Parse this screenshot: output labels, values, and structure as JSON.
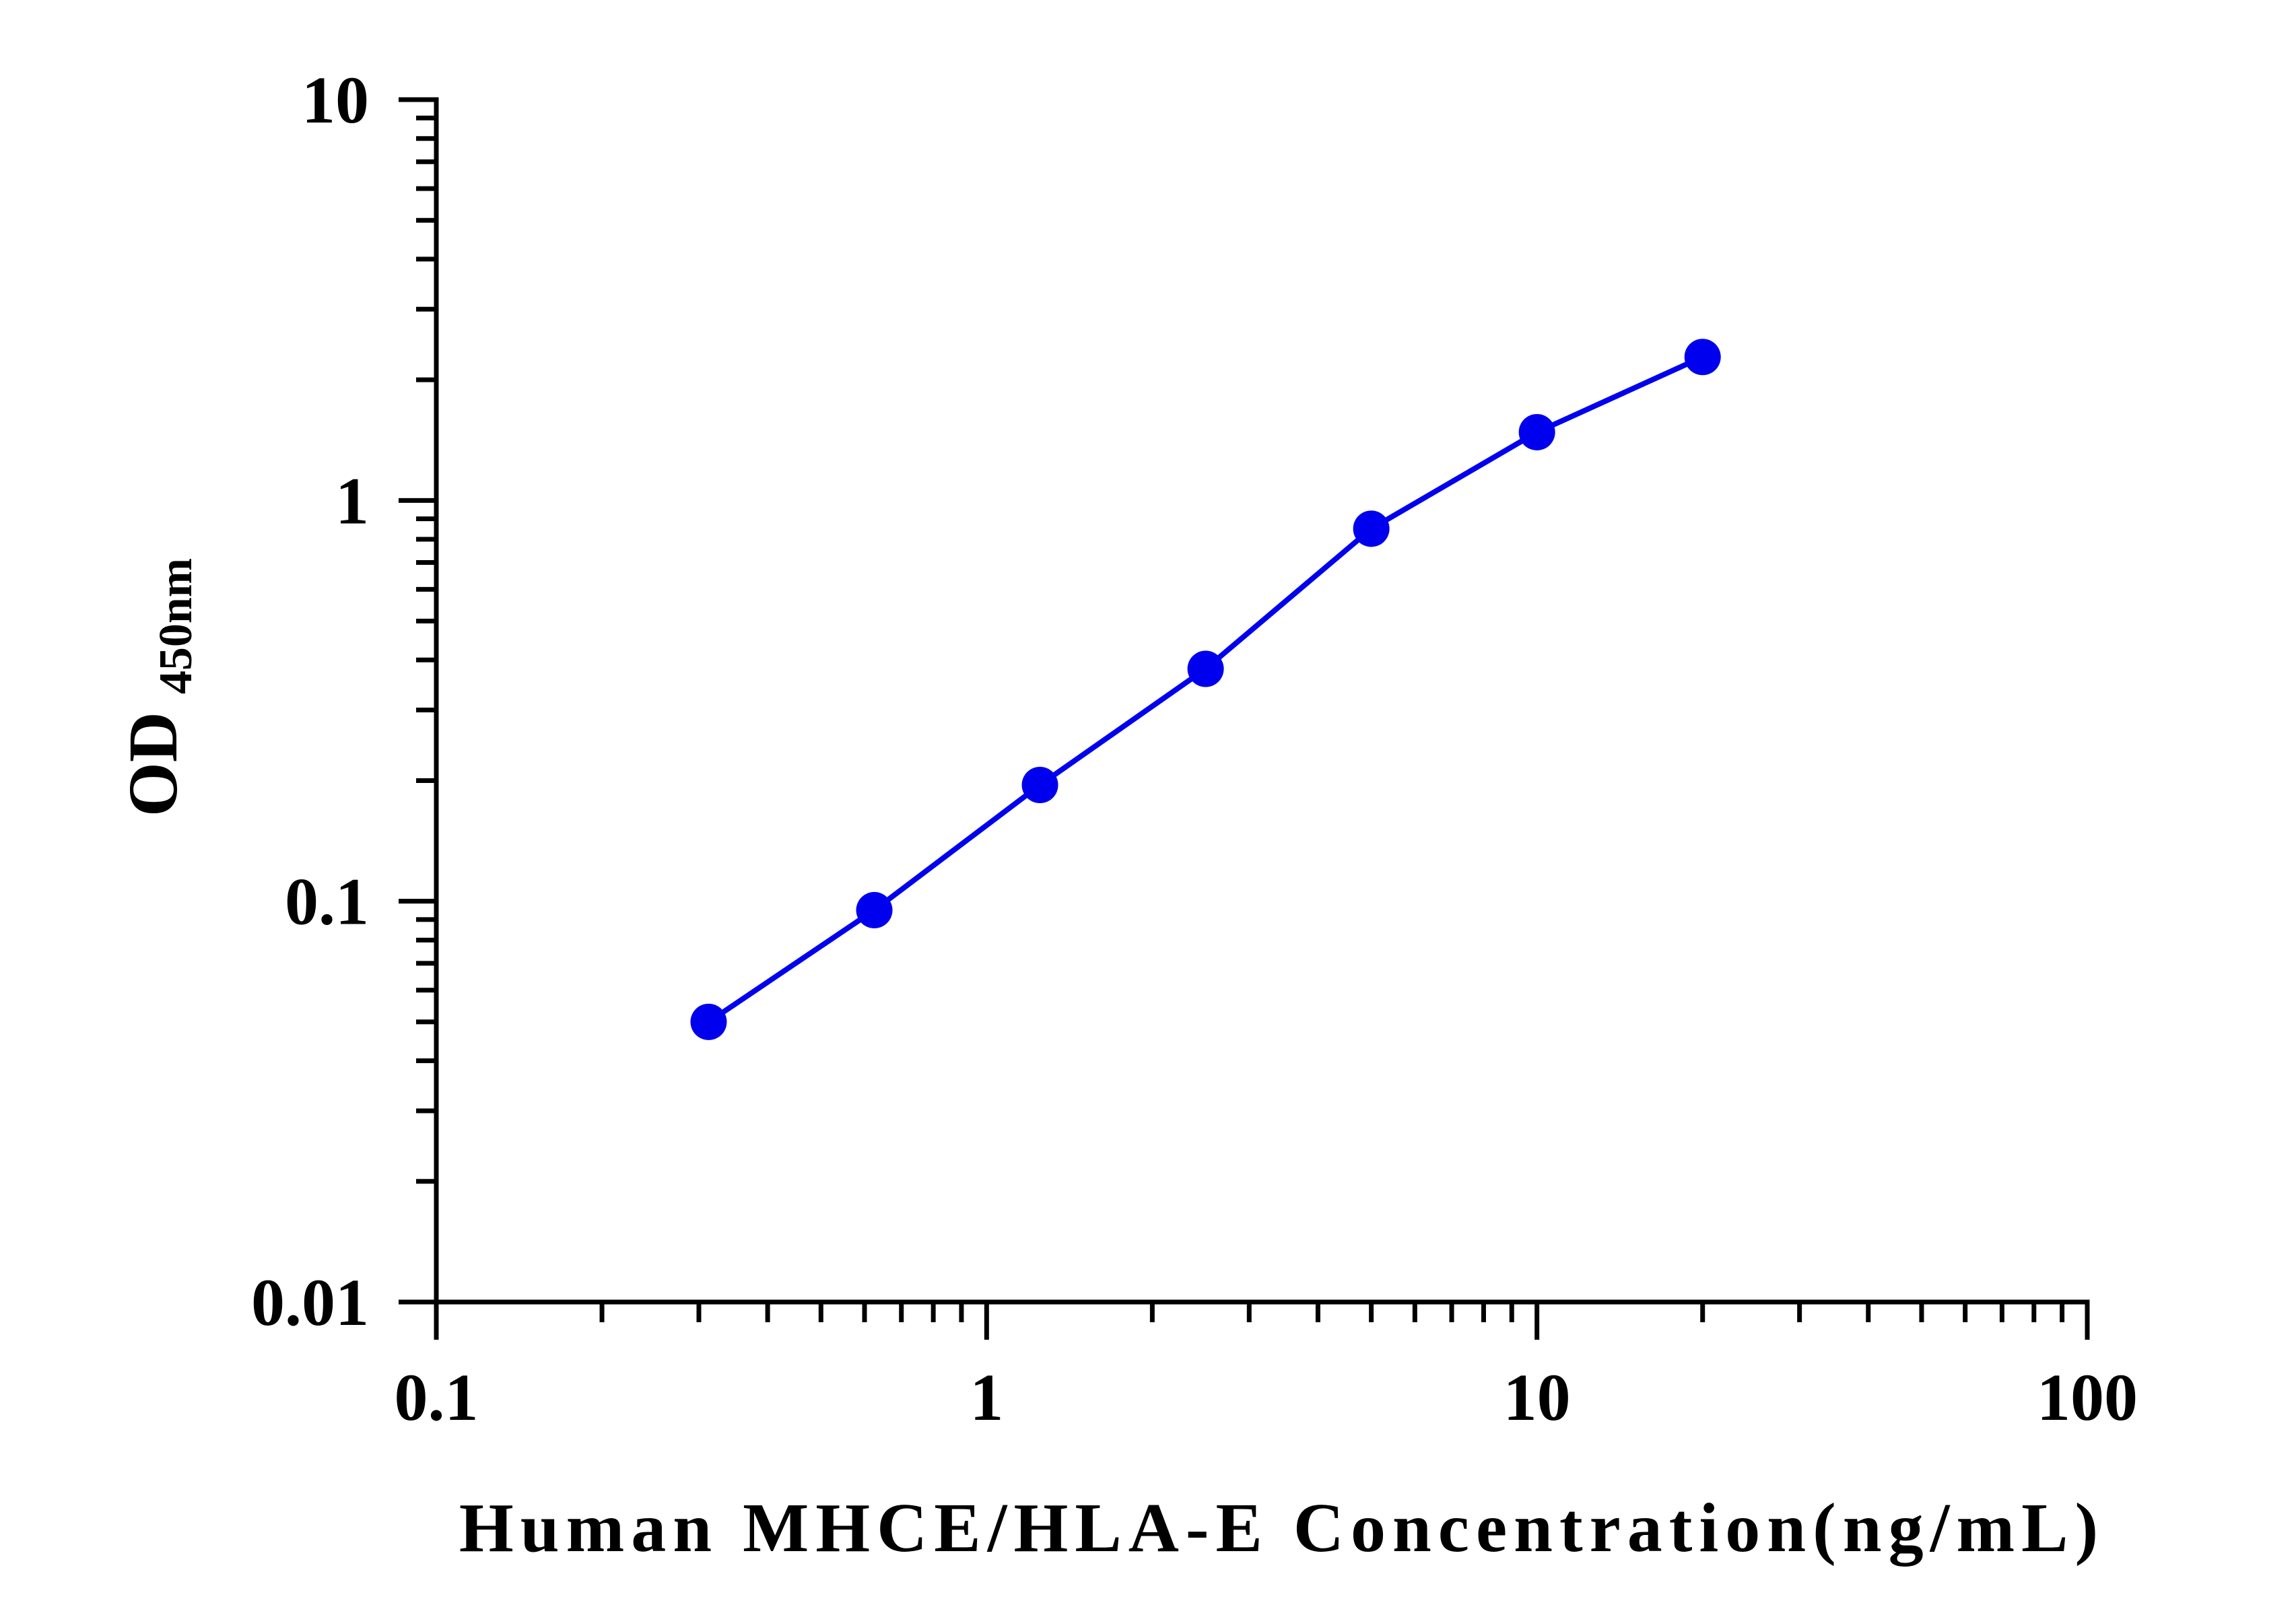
{
  "chart_data": {
    "type": "line",
    "title": "",
    "xlabel": "Human MHCE/HLA-E Concentration(ng/mL)",
    "ylabel": "OD",
    "ylabel_subscript": "450nm",
    "x_scale": "log",
    "y_scale": "log",
    "xlim": [
      0.1,
      100
    ],
    "ylim": [
      0.01,
      10
    ],
    "x_ticks": [
      {
        "value": 0.1,
        "label": "0.1"
      },
      {
        "value": 1,
        "label": "1"
      },
      {
        "value": 10,
        "label": "10"
      },
      {
        "value": 100,
        "label": "100"
      }
    ],
    "y_ticks": [
      {
        "value": 0.01,
        "label": "0.01"
      },
      {
        "value": 0.1,
        "label": "0.1"
      },
      {
        "value": 1,
        "label": "1"
      },
      {
        "value": 10,
        "label": "10"
      }
    ],
    "grid": false,
    "legend": "none",
    "series": [
      {
        "color": "#0000ee",
        "x": [
          0.3125,
          0.625,
          1.25,
          2.5,
          5,
          10,
          20
        ],
        "y": [
          0.05,
          0.095,
          0.195,
          0.38,
          0.85,
          1.48,
          2.28
        ]
      }
    ]
  }
}
